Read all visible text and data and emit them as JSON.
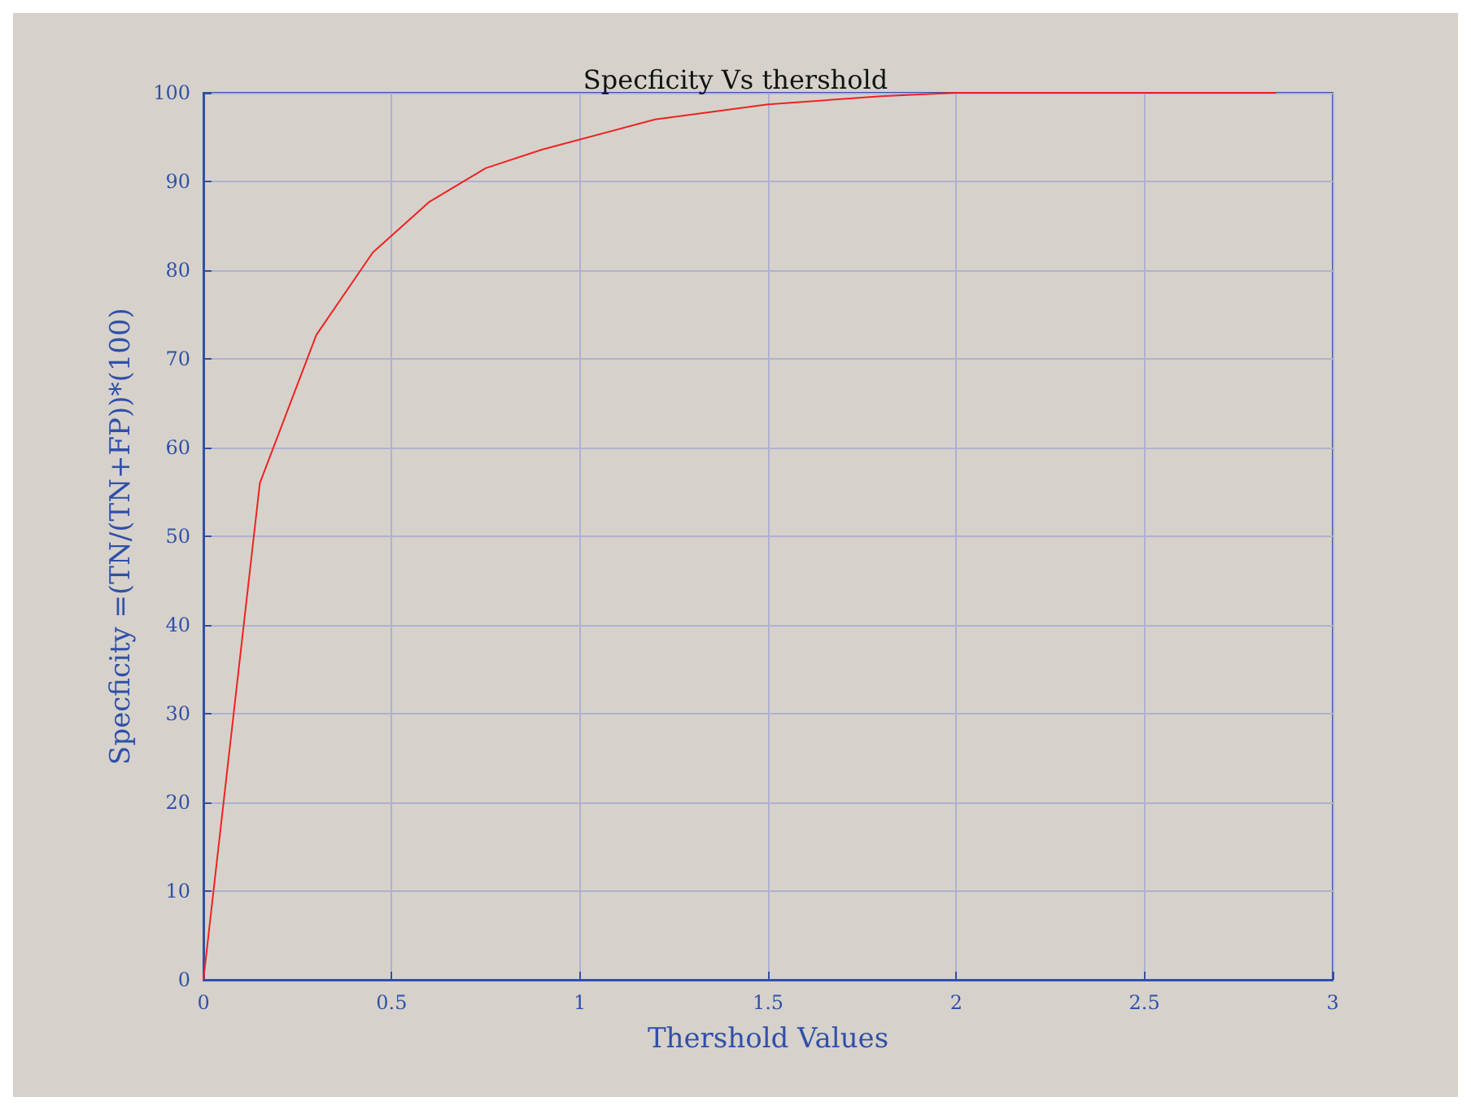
{
  "chart_data": {
    "type": "line",
    "title": "Specficity Vs thershold",
    "xlabel": "Thershold Values",
    "ylabel": "Specficity =(TN/(TN+FP))*(100)",
    "x": [
      0,
      0.15,
      0.3,
      0.45,
      0.6,
      0.75,
      0.9,
      1.2,
      1.5,
      1.8,
      2.0,
      2.4,
      2.85
    ],
    "series": [
      {
        "color": "#ee2222",
        "values": [
          0,
          56,
          72.7,
          82,
          87.7,
          91.5,
          93.6,
          97,
          98.7,
          99.6,
          100,
          100,
          100
        ]
      }
    ],
    "xlim": [
      0,
      3
    ],
    "xticks": [
      0,
      0.5,
      1,
      1.5,
      2,
      2.5,
      3
    ],
    "ylim": [
      0,
      100
    ],
    "yticks": [
      0,
      10,
      20,
      30,
      40,
      50,
      60,
      70,
      80,
      90,
      100
    ],
    "grid": true,
    "marker": "none",
    "line_style": "solid"
  }
}
